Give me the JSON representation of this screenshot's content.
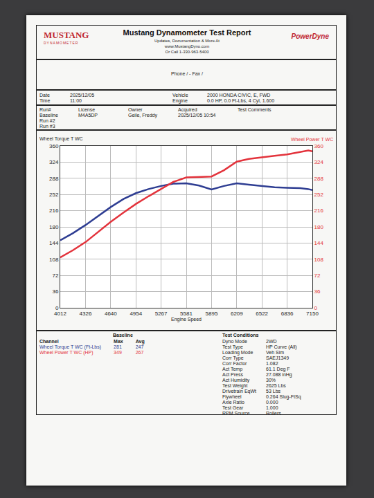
{
  "header": {
    "logo": "MUSTANG",
    "logo_sub": "DYNAMOMETER",
    "title": "Mustang Dynamometer Test Report",
    "lines": [
      "Updates, Documentation & More At",
      "www.MustangDyno.com",
      "Or Call 1-330-963-5400"
    ],
    "brand": "PowerDyne"
  },
  "contact": "Phone / - Fax /",
  "date_fields": [
    {
      "label": "Date",
      "value": "2025/12/05"
    },
    {
      "label": "Time",
      "value": "11:00"
    }
  ],
  "vehicle_fields": [
    {
      "label": "Vehicle",
      "value": "2000 HONDA CIVIC, E, FWD"
    },
    {
      "label": "Engine",
      "value": "0.0 HP, 0.0 Ft-Lbs, 4 Cyl, 1.600"
    }
  ],
  "runs": [
    "Run#",
    "Baseline",
    "Run #2",
    "Run #3"
  ],
  "run_fields": [
    {
      "label": "License",
      "value": "M4A5DP"
    },
    {
      "label": "Owner",
      "value": "Geile, Freddy"
    },
    {
      "label": "Acquired",
      "value": "2025/12/05 10:54"
    }
  ],
  "comments_label": "Test Comments",
  "chart_data": {
    "type": "line",
    "x_label": "Engine Speed",
    "y_label": "Wheel Torque T WC",
    "y2_label": "Wheel Power T WC",
    "x": [
      4012,
      4170,
      4326,
      4480,
      4640,
      4800,
      4954,
      5110,
      5267,
      5420,
      5581,
      5740,
      5895,
      6050,
      6209,
      6360,
      6522,
      6680,
      6836,
      7000,
      7100,
      7150
    ],
    "series": [
      {
        "name": "Wheel Torque T WC",
        "color": "#2e3d92",
        "values": [
          150,
          166,
          184,
          203,
          224,
          242,
          255,
          264,
          271,
          276,
          277,
          272,
          263,
          271,
          277,
          274,
          271,
          268,
          267,
          266,
          264,
          262
        ]
      },
      {
        "name": "Wheel Power T WC",
        "color": "#e3333c",
        "axis": "y2",
        "values": [
          112,
          128,
          146,
          168,
          191,
          212,
          231,
          248,
          264,
          280,
          290,
          291,
          292,
          306,
          325,
          331,
          334,
          338,
          341,
          346,
          350,
          348
        ]
      }
    ],
    "xlim": [
      4012,
      7150
    ],
    "xticks": [
      4012,
      4326,
      4640,
      4954,
      5267,
      5581,
      5895,
      6209,
      6522,
      6836,
      7150
    ],
    "ylim": [
      0,
      360
    ],
    "yticks": [
      0,
      36,
      72,
      108,
      144,
      180,
      216,
      252,
      288,
      324,
      360
    ],
    "y2lim": [
      0,
      360
    ],
    "y2ticks": [
      0,
      36,
      72,
      108,
      144,
      180,
      216,
      252,
      288,
      324,
      360
    ],
    "grid": true
  },
  "summary": {
    "title": "Baseline",
    "columns": [
      "Channel",
      "Max",
      "Avg"
    ],
    "rows": [
      [
        "Wheel Torque T WC (Ft-Lbs)",
        281,
        247
      ],
      [
        "Wheel Power T WC (HP)",
        349,
        267
      ]
    ]
  },
  "conditions": {
    "title": "Test Conditions",
    "rows": [
      [
        "Dyno Mode",
        "2WD"
      ],
      [
        "Test Type",
        "HP Curve (All)"
      ],
      [
        "Loading Mode",
        "Veh Sim"
      ],
      [
        "Corr Type",
        "SAEJ1349"
      ],
      [
        "Corr Factor",
        "1.082"
      ],
      [
        "Act Temp",
        "61.1 Deg F"
      ],
      [
        "Act Press",
        "27.088 inHg"
      ],
      [
        "Act Humidity",
        "30%"
      ],
      [
        "Test Weight",
        "2625 Lbs"
      ],
      [
        "Drivetrain EqWt",
        "53 Lbs"
      ],
      [
        "Flywheel",
        "0.264 Slug-FtSq"
      ],
      [
        "Axle Ratio",
        "0.000"
      ],
      [
        "Test Gear",
        "1.000"
      ],
      [
        "RPM Source",
        "Rollers"
      ]
    ]
  }
}
